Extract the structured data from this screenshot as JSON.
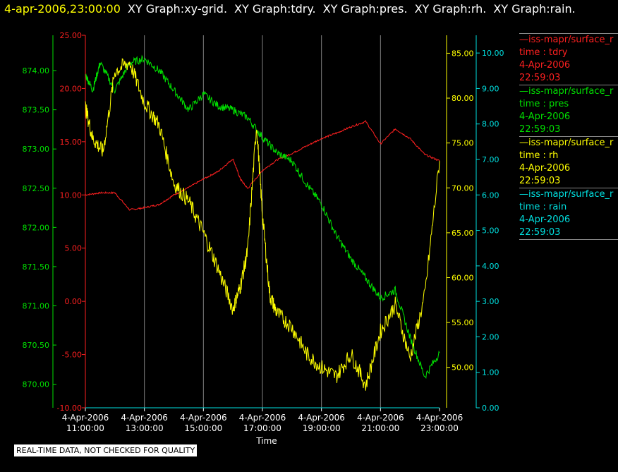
{
  "header": {
    "timestamp": "4-apr-2006,23:00:00",
    "graphs": [
      "XY Graph:xy-grid.",
      "XY Graph:tdry.",
      "XY Graph:pres.",
      "XY Graph:rh.",
      "XY Graph:rain."
    ]
  },
  "legend": [
    {
      "name": "—iss-mapr/surface_r",
      "field": "time : tdry",
      "date": "4-Apr-2006",
      "time": "22:59:03",
      "color": "#ff2020"
    },
    {
      "name": "—iss-mapr/surface_r",
      "field": "time : pres",
      "date": "4-Apr-2006",
      "time": "22:59:03",
      "color": "#00e000"
    },
    {
      "name": "—iss-mapr/surface_r",
      "field": "time : rh",
      "date": "4-Apr-2006",
      "time": "22:59:03",
      "color": "#ffff00"
    },
    {
      "name": "—iss-mapr/surface_r",
      "field": "time : rain",
      "date": "4-Apr-2006",
      "time": "22:59:03",
      "color": "#00e0e0"
    }
  ],
  "disclaimer": "REAL-TIME DATA, NOT CHECKED FOR QUALITY",
  "chart_data": {
    "type": "line",
    "xlabel": "Time",
    "xlim": [
      11,
      23
    ],
    "x_ticks": [
      {
        "date": "4-Apr-2006",
        "time": "11:00:00",
        "hour": 11
      },
      {
        "date": "4-Apr-2006",
        "time": "13:00:00",
        "hour": 13
      },
      {
        "date": "4-Apr-2006",
        "time": "15:00:00",
        "hour": 15
      },
      {
        "date": "4-Apr-2006",
        "time": "17:00:00",
        "hour": 17
      },
      {
        "date": "4-Apr-2006",
        "time": "19:00:00",
        "hour": 19
      },
      {
        "date": "4-Apr-2006",
        "time": "21:00:00",
        "hour": 21
      },
      {
        "date": "4-Apr-2006",
        "time": "23:00:00",
        "hour": 23
      }
    ],
    "grid": true,
    "axes": {
      "tdry": {
        "color": "#ff2020",
        "ylim": [
          -10,
          25
        ],
        "ticks": [
          "-10.00",
          "-5.00",
          "0.00",
          "5.00",
          "10.00",
          "15.00",
          "20.00",
          "25.00"
        ]
      },
      "pres": {
        "color": "#00e000",
        "ylim": [
          869.7,
          874.45
        ],
        "ticks": [
          "870.00",
          "870.50",
          "871.00",
          "871.50",
          "872.00",
          "872.50",
          "873.00",
          "873.50",
          "874.00"
        ]
      },
      "rh": {
        "color": "#ffff00",
        "ylim": [
          45.5,
          87
        ],
        "ticks": [
          "50.00",
          "55.00",
          "60.00",
          "65.00",
          "70.00",
          "75.00",
          "80.00",
          "85.00"
        ]
      },
      "rain": {
        "color": "#00e0e0",
        "ylim": [
          0,
          10.5
        ],
        "ticks": [
          "0.00",
          "1.00",
          "2.00",
          "3.00",
          "4.00",
          "5.00",
          "6.00",
          "7.00",
          "8.00",
          "9.00",
          "10.00"
        ]
      }
    },
    "series": [
      {
        "axis": "tdry",
        "x": [
          11,
          11.5,
          12,
          12.5,
          13,
          13.5,
          14,
          14.5,
          15,
          15.5,
          16,
          16.25,
          16.5,
          17,
          17.5,
          18,
          18.5,
          19,
          19.5,
          20,
          20.5,
          21,
          21.5,
          22,
          22.5,
          23
        ],
        "values": [
          10,
          10.2,
          10.2,
          8.6,
          8.8,
          9.1,
          10,
          10.7,
          11.5,
          12.2,
          13.4,
          11.5,
          10.6,
          12.3,
          13.3,
          13.9,
          14.6,
          15.3,
          15.8,
          16.4,
          16.9,
          14.8,
          16.2,
          15.3,
          13.8,
          13.2
        ]
      },
      {
        "axis": "pres",
        "x": [
          11,
          11.25,
          11.5,
          12,
          12.5,
          13,
          13.5,
          14,
          14.5,
          15,
          15.5,
          16,
          16.5,
          17,
          17.5,
          18,
          18.5,
          19,
          19.5,
          20,
          20.5,
          21,
          21.5,
          22,
          22.5,
          23
        ],
        "values": [
          873.95,
          873.75,
          874.1,
          873.75,
          874.1,
          874.15,
          874.0,
          873.75,
          873.5,
          873.7,
          873.55,
          873.5,
          873.4,
          873.15,
          872.95,
          872.85,
          872.55,
          872.3,
          871.9,
          871.6,
          871.35,
          871.1,
          871.2,
          870.6,
          870.1,
          870.4
        ]
      },
      {
        "axis": "rh",
        "x": [
          11,
          11.25,
          11.6,
          12,
          12.5,
          13,
          13.5,
          14,
          14.5,
          15,
          15.5,
          16,
          16.25,
          16.5,
          16.8,
          17,
          17.25,
          17.5,
          18,
          18.5,
          19,
          19.5,
          20,
          20.5,
          21,
          21.5,
          22,
          22.5,
          23
        ],
        "values": [
          79,
          75.5,
          74,
          83,
          84,
          79.5,
          77,
          70.5,
          68.5,
          65,
          61,
          56.5,
          59,
          63,
          77,
          67,
          58,
          56,
          54.5,
          51.5,
          50,
          49,
          51.5,
          48,
          54,
          57,
          51,
          58,
          73
        ]
      },
      {
        "axis": "rain",
        "x": [
          11,
          12,
          13,
          14,
          15,
          16,
          17,
          18,
          19,
          20,
          21,
          22,
          23
        ],
        "values": [
          0,
          0,
          0,
          0,
          0,
          0,
          0,
          0,
          0,
          0,
          0,
          0,
          0
        ]
      }
    ]
  }
}
